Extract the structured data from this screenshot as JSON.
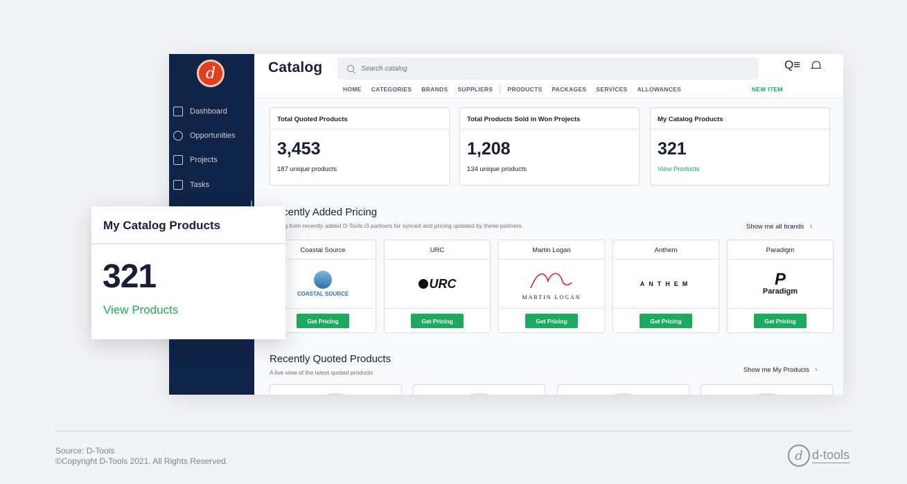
{
  "sidebar": {
    "logo_letter": "d",
    "items": [
      {
        "label": "Dashboard",
        "icon": "dashboard-icon"
      },
      {
        "label": "Opportunities",
        "icon": "target-icon"
      },
      {
        "label": "Projects",
        "icon": "briefcase-icon"
      },
      {
        "label": "Tasks",
        "icon": "checkbox-icon"
      }
    ]
  },
  "header": {
    "title": "Catalog",
    "search_placeholder": "Search catalog",
    "tabs": [
      "HOME",
      "CATEGORIES",
      "BRANDS",
      "SUPPLIERS",
      "PRODUCTS",
      "PACKAGES",
      "SERVICES",
      "ALLOWANCES"
    ],
    "new_item": "NEW ITEM"
  },
  "stats": [
    {
      "title": "Total Quoted Products",
      "value": "3,453",
      "sub": "187 unique products"
    },
    {
      "title": "Total Products Sold in Won Projects",
      "value": "1,208",
      "sub": "134 unique products"
    },
    {
      "title": "My Catalog Products",
      "value": "321",
      "sub": "View Products"
    }
  ],
  "pricing": {
    "title": "Recently Added Pricing",
    "desc": "Pricing from recently added D-Tools i3 partners for synced and pricing updated by these partners.",
    "show_all": "Show me all brands",
    "brands": [
      {
        "name": "Coastal Source",
        "logo_text": "COASTAL SOURCE",
        "button": "Get Pricing"
      },
      {
        "name": "URC",
        "logo_text": "URC",
        "button": "Get Pricing"
      },
      {
        "name": "Martin Logan",
        "logo_text": "MARTIN LOGAN",
        "button": "Get Pricing"
      },
      {
        "name": "Anthem",
        "logo_text": "ANTHEM",
        "button": "Get Pricing"
      },
      {
        "name": "Paradigm",
        "logo_text": "Paradigm",
        "button": "Get Pricing"
      }
    ]
  },
  "quoted": {
    "title": "Recently Quoted Products",
    "desc": "A live view of the latest quoted products",
    "show_all": "Show me My Products"
  },
  "overlay": {
    "title": "My Catalog Products",
    "value": "321",
    "link": "View Products"
  },
  "footer": {
    "source": "Source: D-Tools",
    "copyright": "©Copyright D-Tools 2021. All Rights Reserved.",
    "logo_text": "d-tools"
  },
  "colors": {
    "sidebar": "#0f2447",
    "accent_green": "#1daa5e",
    "logo_orange": "#e0401f"
  }
}
